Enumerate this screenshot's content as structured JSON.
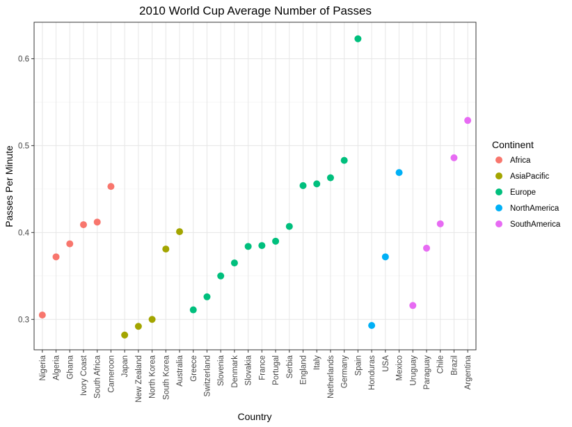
{
  "chart_data": {
    "type": "scatter",
    "title": "2010 World Cup Average Number of Passes",
    "xlabel": "Country",
    "ylabel": "Passes Per Minute",
    "ylim": [
      0.265,
      0.642
    ],
    "yticks": [
      0.3,
      0.4,
      0.5,
      0.6
    ],
    "ytick_labels": [
      "0.3",
      "0.4",
      "0.5",
      "0.6"
    ],
    "grid": true,
    "legend": {
      "title": "Continent",
      "placement": "right",
      "entries": [
        {
          "name": "Africa",
          "color": "#F8766D"
        },
        {
          "name": "AsiaPacific",
          "color": "#A3A500"
        },
        {
          "name": "Europe",
          "color": "#00BF7D"
        },
        {
          "name": "NorthAmerica",
          "color": "#00B0F6"
        },
        {
          "name": "SouthAmerica",
          "color": "#E76BF3"
        }
      ]
    },
    "categories": [
      "Nigeria",
      "Algeria",
      "Ghana",
      "Ivory Coast",
      "South Africa",
      "Cameroon",
      "Japan",
      "New Zealand",
      "North Korea",
      "South Korea",
      "Australia",
      "Greece",
      "Switzerland",
      "Slovenia",
      "Denmark",
      "Slovakia",
      "France",
      "Portugal",
      "Serbia",
      "England",
      "Italy",
      "Netherlands",
      "Germany",
      "Spain",
      "Honduras",
      "USA",
      "Mexico",
      "Uruguay",
      "Paraguay",
      "Chile",
      "Brazil",
      "Argentina"
    ],
    "points": [
      {
        "country": "Nigeria",
        "continent": "Africa",
        "y": 0.305
      },
      {
        "country": "Algeria",
        "continent": "Africa",
        "y": 0.372
      },
      {
        "country": "Ghana",
        "continent": "Africa",
        "y": 0.387
      },
      {
        "country": "Ivory Coast",
        "continent": "Africa",
        "y": 0.409
      },
      {
        "country": "South Africa",
        "continent": "Africa",
        "y": 0.412
      },
      {
        "country": "Cameroon",
        "continent": "Africa",
        "y": 0.453
      },
      {
        "country": "Japan",
        "continent": "AsiaPacific",
        "y": 0.282
      },
      {
        "country": "New Zealand",
        "continent": "AsiaPacific",
        "y": 0.292
      },
      {
        "country": "North Korea",
        "continent": "AsiaPacific",
        "y": 0.3
      },
      {
        "country": "South Korea",
        "continent": "AsiaPacific",
        "y": 0.381
      },
      {
        "country": "Australia",
        "continent": "AsiaPacific",
        "y": 0.401
      },
      {
        "country": "Greece",
        "continent": "Europe",
        "y": 0.311
      },
      {
        "country": "Switzerland",
        "continent": "Europe",
        "y": 0.326
      },
      {
        "country": "Slovenia",
        "continent": "Europe",
        "y": 0.35
      },
      {
        "country": "Denmark",
        "continent": "Europe",
        "y": 0.365
      },
      {
        "country": "Slovakia",
        "continent": "Europe",
        "y": 0.384
      },
      {
        "country": "France",
        "continent": "Europe",
        "y": 0.385
      },
      {
        "country": "Portugal",
        "continent": "Europe",
        "y": 0.39
      },
      {
        "country": "Serbia",
        "continent": "Europe",
        "y": 0.407
      },
      {
        "country": "England",
        "continent": "Europe",
        "y": 0.454
      },
      {
        "country": "Italy",
        "continent": "Europe",
        "y": 0.456
      },
      {
        "country": "Netherlands",
        "continent": "Europe",
        "y": 0.463
      },
      {
        "country": "Germany",
        "continent": "Europe",
        "y": 0.483
      },
      {
        "country": "Spain",
        "continent": "Europe",
        "y": 0.623
      },
      {
        "country": "Honduras",
        "continent": "NorthAmerica",
        "y": 0.293
      },
      {
        "country": "USA",
        "continent": "NorthAmerica",
        "y": 0.372
      },
      {
        "country": "Mexico",
        "continent": "NorthAmerica",
        "y": 0.469
      },
      {
        "country": "Uruguay",
        "continent": "SouthAmerica",
        "y": 0.316
      },
      {
        "country": "Paraguay",
        "continent": "SouthAmerica",
        "y": 0.382
      },
      {
        "country": "Chile",
        "continent": "SouthAmerica",
        "y": 0.41
      },
      {
        "country": "Brazil",
        "continent": "SouthAmerica",
        "y": 0.486
      },
      {
        "country": "Argentina",
        "continent": "SouthAmerica",
        "y": 0.529
      }
    ]
  }
}
